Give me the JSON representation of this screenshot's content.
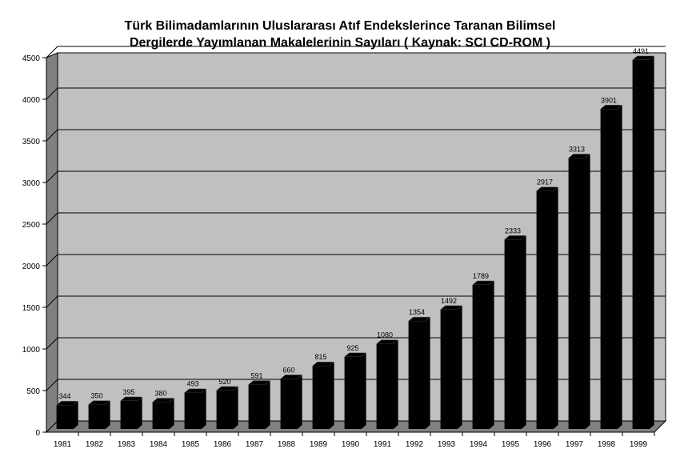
{
  "chart_data": {
    "type": "bar",
    "title_line1": "Türk Bilimadamlarının Uluslararası Atıf Endekslerince Taranan Bilimsel",
    "title_line2": "Dergilerde Yayımlanan Makalelerinin Sayıları ( Kaynak: SCI CD-ROM )",
    "xlabel": "",
    "ylabel": "",
    "categories": [
      "1981",
      "1982",
      "1983",
      "1984",
      "1985",
      "1986",
      "1987",
      "1988",
      "1989",
      "1990",
      "1991",
      "1992",
      "1993",
      "1994",
      "1995",
      "1996",
      "1997",
      "1998",
      "1999"
    ],
    "values": [
      344,
      350,
      395,
      380,
      493,
      520,
      591,
      660,
      815,
      925,
      1080,
      1354,
      1492,
      1789,
      2333,
      2917,
      3313,
      3901,
      4491
    ],
    "yticks": [
      0,
      500,
      1000,
      1500,
      2000,
      2500,
      3000,
      3500,
      4000,
      4500
    ],
    "ylim": [
      0,
      4500
    ],
    "grid": true,
    "legend": "none",
    "colors": {
      "bar": "#000000",
      "plot_back": "#c0c0c0",
      "plot_side": "#808080",
      "floor": "#808080"
    }
  }
}
